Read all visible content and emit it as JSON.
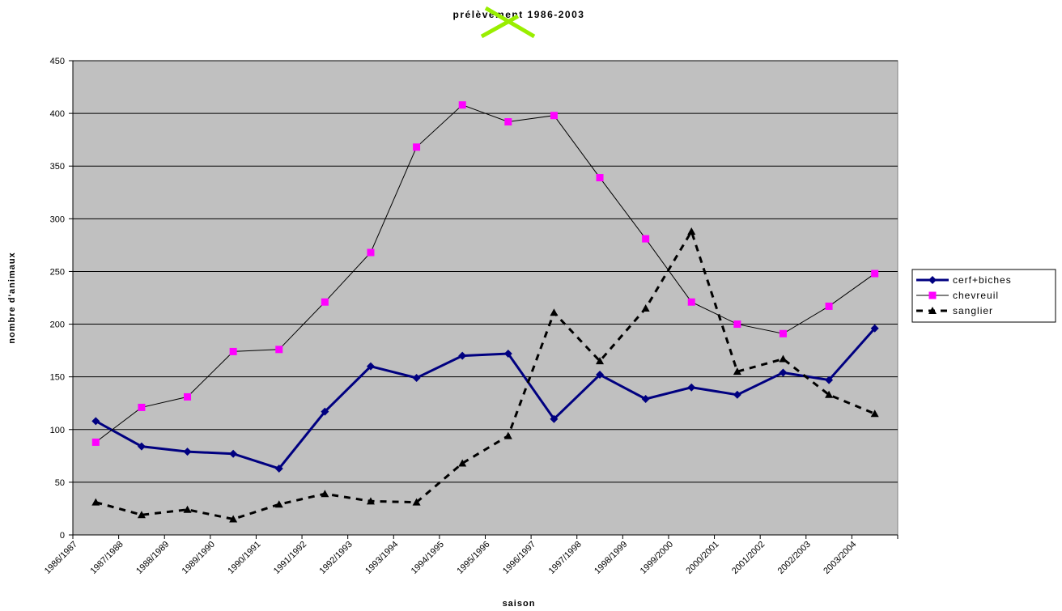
{
  "chart_data": {
    "type": "line",
    "title": "prélèvement 1986-2003",
    "x_label": "saison",
    "y_label": "nombre d'animaux",
    "categories": [
      "1986/1987",
      "1987/1988",
      "1988/1989",
      "1989/1990",
      "1990/1991",
      "1991/1992",
      "1992/1993",
      "1993/1994",
      "1994/1995",
      "1995/1996",
      "1996/1997",
      "1997/1998",
      "1998/1999",
      "1999/2000",
      "2000/2001",
      "2001/2002",
      "2002/2003",
      "2003/2004"
    ],
    "series": [
      {
        "name": "cerf+biches",
        "color": "#000080",
        "marker": "diamond",
        "dash": "solid",
        "width": 3,
        "values": [
          108,
          84,
          79,
          77,
          63,
          117,
          160,
          149,
          170,
          172,
          110,
          152,
          129,
          140,
          133,
          154,
          147,
          196
        ]
      },
      {
        "name": "chevreuil",
        "color": "#000000",
        "marker_color": "#ff00ff",
        "marker": "square",
        "dash": "solid",
        "width": 1,
        "values": [
          88,
          121,
          131,
          174,
          176,
          221,
          268,
          368,
          408,
          392,
          398,
          339,
          281,
          221,
          200,
          191,
          217,
          248
        ]
      },
      {
        "name": "sanglier",
        "color": "#000000",
        "marker": "triangle",
        "dash": "dashed",
        "width": 3,
        "values": [
          31,
          19,
          24,
          15,
          29,
          39,
          32,
          31,
          68,
          94,
          211,
          165,
          215,
          288,
          155,
          167,
          133,
          115
        ]
      }
    ],
    "ylim": [
      0,
      450
    ],
    "yticks": [
      0,
      50,
      100,
      150,
      200,
      250,
      300,
      350,
      400,
      450
    ],
    "grid": true,
    "plot_background": "#c0c0c0",
    "legend": "right"
  }
}
